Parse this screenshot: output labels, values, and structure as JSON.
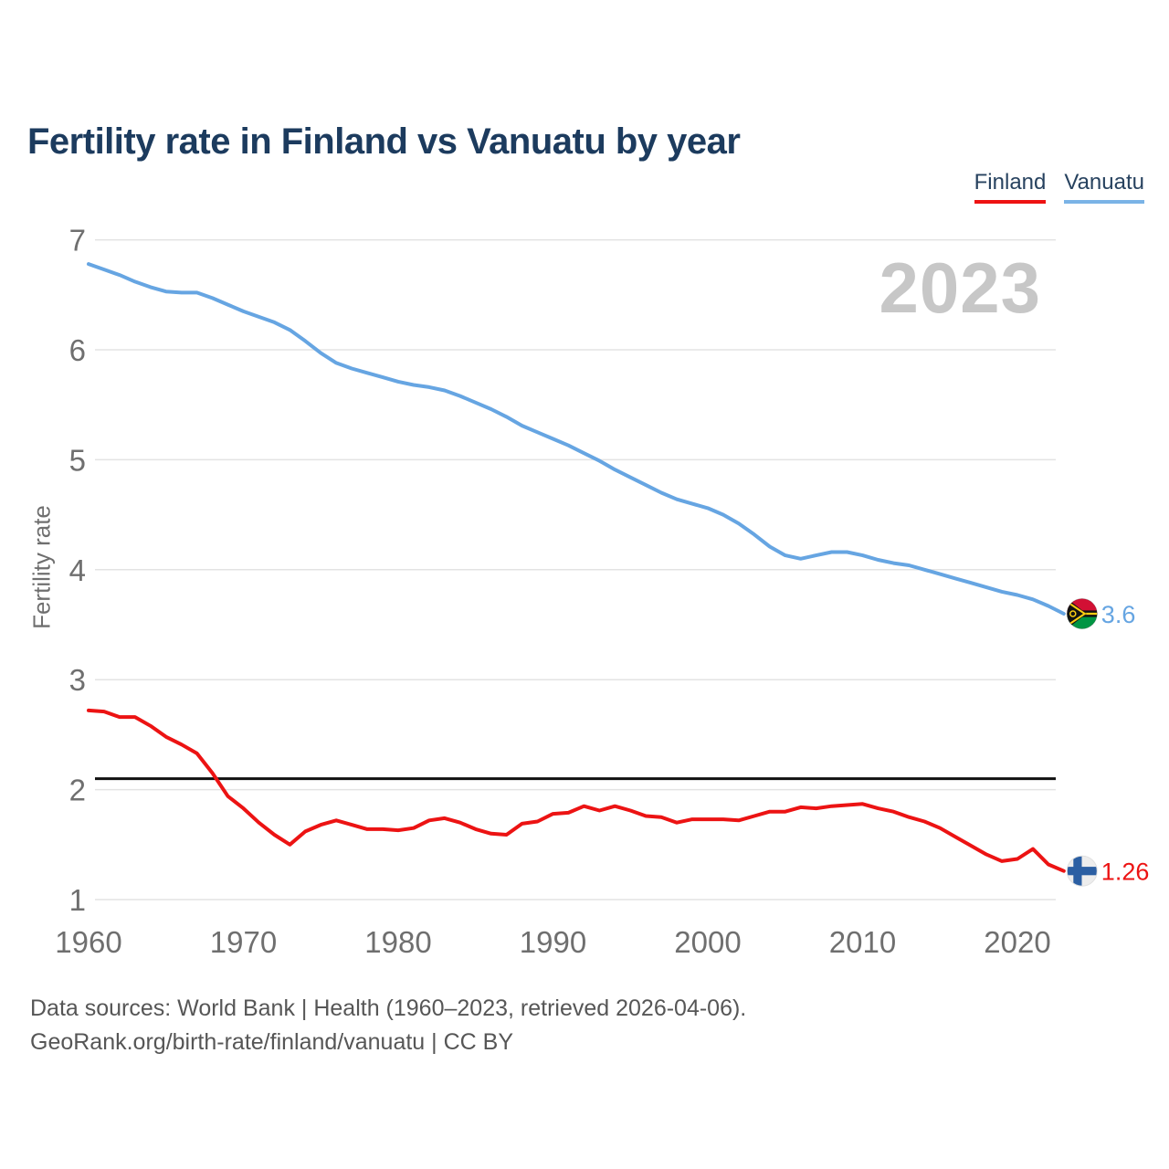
{
  "header": {
    "title": "Fertility rate in Finland vs Vanuatu by year"
  },
  "legend": [
    {
      "label": "Finland",
      "underline_color": "#ee1212"
    },
    {
      "label": "Vanuatu",
      "underline_color": "#7ab3e6"
    }
  ],
  "watermark": "2023",
  "footer": {
    "line1": "Data sources: World Bank | Health (1960–2023, retrieved 2026-04-06).",
    "line2": "GeoRank.org/birth-rate/finland/vanuatu | CC BY"
  },
  "colors": {
    "title_text": "#1c3b5e",
    "tick_text": "#6f6f6f",
    "grid": "#e3e3e3",
    "reference_line": "#111111",
    "watermark": "#c7c7c7",
    "footer_text": "#565656",
    "finland_line": "#ec1313",
    "vanuatu_line": "#66a5e2"
  },
  "chart_data": {
    "type": "line",
    "title": "Fertility rate in Finland vs Vanuatu by year",
    "xlabel": "",
    "ylabel": "Fertility rate",
    "ylim": [
      1,
      7
    ],
    "y_ticks": [
      1,
      2,
      3,
      4,
      5,
      6,
      7
    ],
    "x_ticks": [
      1960,
      1970,
      1980,
      1990,
      2000,
      2010,
      2020
    ],
    "x_range": [
      1960,
      2023
    ],
    "grid": "horizontal",
    "legend_position": "top-right",
    "reference_line": 2.1,
    "years": [
      1960,
      1961,
      1962,
      1963,
      1964,
      1965,
      1966,
      1967,
      1968,
      1969,
      1970,
      1971,
      1972,
      1973,
      1974,
      1975,
      1976,
      1977,
      1978,
      1979,
      1980,
      1981,
      1982,
      1983,
      1984,
      1985,
      1986,
      1987,
      1988,
      1989,
      1990,
      1991,
      1992,
      1993,
      1994,
      1995,
      1996,
      1997,
      1998,
      1999,
      2000,
      2001,
      2002,
      2003,
      2004,
      2005,
      2006,
      2007,
      2008,
      2009,
      2010,
      2011,
      2012,
      2013,
      2014,
      2015,
      2016,
      2017,
      2018,
      2019,
      2020,
      2021,
      2022,
      2023
    ],
    "series": [
      {
        "name": "Finland",
        "color": "#ec1313",
        "end_label": "1.26",
        "end_value": 1.26,
        "values": [
          2.72,
          2.71,
          2.66,
          2.66,
          2.58,
          2.48,
          2.41,
          2.33,
          2.15,
          1.94,
          1.83,
          1.7,
          1.59,
          1.5,
          1.62,
          1.68,
          1.72,
          1.68,
          1.64,
          1.64,
          1.63,
          1.65,
          1.72,
          1.74,
          1.7,
          1.64,
          1.6,
          1.59,
          1.69,
          1.71,
          1.78,
          1.79,
          1.85,
          1.81,
          1.85,
          1.81,
          1.76,
          1.75,
          1.7,
          1.73,
          1.73,
          1.73,
          1.72,
          1.76,
          1.8,
          1.8,
          1.84,
          1.83,
          1.85,
          1.86,
          1.87,
          1.83,
          1.8,
          1.75,
          1.71,
          1.65,
          1.57,
          1.49,
          1.41,
          1.35,
          1.37,
          1.46,
          1.32,
          1.26
        ]
      },
      {
        "name": "Vanuatu",
        "color": "#66a5e2",
        "end_label": "3.6",
        "end_value": 3.6,
        "values": [
          6.78,
          6.73,
          6.68,
          6.62,
          6.57,
          6.53,
          6.52,
          6.52,
          6.47,
          6.41,
          6.35,
          6.3,
          6.25,
          6.18,
          6.08,
          5.97,
          5.88,
          5.83,
          5.79,
          5.75,
          5.71,
          5.68,
          5.66,
          5.63,
          5.58,
          5.52,
          5.46,
          5.39,
          5.31,
          5.25,
          5.19,
          5.13,
          5.06,
          4.99,
          4.91,
          4.84,
          4.77,
          4.7,
          4.64,
          4.6,
          4.56,
          4.5,
          4.42,
          4.32,
          4.21,
          4.13,
          4.1,
          4.13,
          4.16,
          4.16,
          4.13,
          4.09,
          4.06,
          4.04,
          4.0,
          3.96,
          3.92,
          3.88,
          3.84,
          3.8,
          3.77,
          3.73,
          3.67,
          3.6
        ]
      }
    ]
  }
}
